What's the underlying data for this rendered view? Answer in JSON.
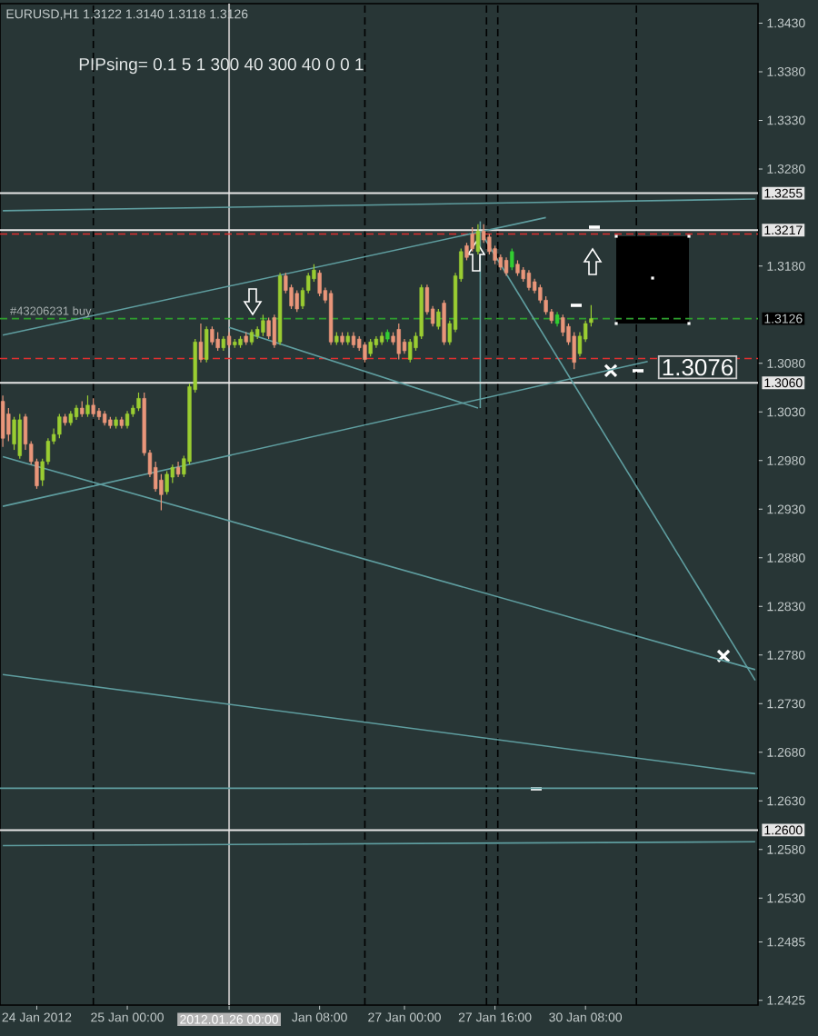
{
  "chart_data": {
    "type": "candlestick",
    "title": "EURUSD,H1 1.3122 1.3140 1.3118 1.3126",
    "annotations": [
      "PIPsing= 0.1 5 1 300 40 300 40 0 0 1",
      {
        "text": "#43206231 buy",
        "y": 1.3126
      },
      {
        "text": "1.3076",
        "y": 1.3076
      }
    ],
    "categories": [
      null,
      null,
      null,
      null,
      null,
      null,
      "24 Jan 2012",
      null,
      null,
      null,
      null,
      null,
      null,
      null,
      null,
      null,
      null,
      null,
      null,
      null,
      null,
      null,
      "25 Jan 00:00",
      null,
      null,
      null,
      null,
      null,
      null,
      null,
      null,
      null,
      null,
      null,
      null,
      null,
      null,
      null,
      null,
      null,
      "2012.01.26 00:00",
      null,
      null,
      null,
      null,
      null,
      null,
      null,
      null,
      null,
      null,
      null,
      null,
      null,
      null,
      null,
      "Jan 08:00",
      null,
      null,
      null,
      null,
      null,
      null,
      null,
      null,
      null,
      null,
      null,
      null,
      null,
      null,
      "27 Jan 00:00",
      null,
      null,
      null,
      null,
      null,
      null,
      null,
      null,
      null,
      null,
      null,
      null,
      null,
      null,
      null,
      "27 Jan 16:00",
      null,
      null,
      null,
      null,
      null,
      null,
      null,
      null,
      null,
      null,
      null,
      null,
      null,
      null,
      null,
      "30 Jan 08:00",
      null,
      null,
      null,
      null,
      null,
      null,
      null,
      null,
      null,
      null,
      null,
      null,
      null,
      null,
      null,
      null,
      null,
      null,
      null,
      null,
      null,
      null,
      null,
      null,
      null,
      null,
      null,
      null,
      null,
      null
    ],
    "ohlc": [
      [
        1.3041,
        1.3047,
        1.2994,
        1.3003
      ],
      [
        1.3028,
        1.3034,
        1.3,
        1.3007
      ],
      [
        1.2997,
        1.3025,
        1.2991,
        1.3022
      ],
      [
        1.2985,
        1.3028,
        1.2982,
        1.3022
      ],
      [
        1.3025,
        1.3028,
        1.2991,
        1.2997
      ],
      [
        1.2997,
        1.3,
        1.2976,
        1.2979
      ],
      [
        1.2979,
        1.2982,
        1.2951,
        1.2954
      ],
      [
        1.296,
        1.2982,
        1.2954,
        1.2979
      ],
      [
        1.2979,
        1.3003,
        1.2976,
        1.3
      ],
      [
        1.3,
        1.3013,
        1.2997,
        1.3007
      ],
      [
        1.3007,
        1.3028,
        1.3003,
        1.3025
      ],
      [
        1.3025,
        1.3028,
        1.3016,
        1.3019
      ],
      [
        1.3019,
        1.3031,
        1.3016,
        1.3028
      ],
      [
        1.3025,
        1.3037,
        1.3022,
        1.3034
      ],
      [
        1.3034,
        1.3041,
        1.3025,
        1.3028
      ],
      [
        1.3028,
        1.3047,
        1.3025,
        1.3037
      ],
      [
        1.3037,
        1.3044,
        1.3025,
        1.3028
      ],
      [
        1.3031,
        1.3034,
        1.3022,
        1.3025
      ],
      [
        1.3028,
        1.3031,
        1.3016,
        1.3019
      ],
      [
        1.3022,
        1.3025,
        1.3013,
        1.3016
      ],
      [
        1.3016,
        1.3025,
        1.3013,
        1.3022
      ],
      [
        1.3022,
        1.3025,
        1.3013,
        1.3016
      ],
      [
        1.3016,
        1.3031,
        1.3013,
        1.3028
      ],
      [
        1.3028,
        1.3037,
        1.3025,
        1.3034
      ],
      [
        1.3034,
        1.305,
        1.3031,
        1.3044
      ],
      [
        1.3044,
        1.305,
        1.2985,
        1.2988
      ],
      [
        1.2988,
        1.2991,
        1.2963,
        1.2966
      ],
      [
        1.2973,
        1.2979,
        1.2948,
        1.2951
      ],
      [
        1.296,
        1.2966,
        1.2929,
        1.2945
      ],
      [
        1.2948,
        1.2969,
        1.2945,
        1.2966
      ],
      [
        1.2963,
        1.2976,
        1.2957,
        1.2973
      ],
      [
        1.2973,
        1.2979,
        1.2963,
        1.2966
      ],
      [
        1.2966,
        1.2985,
        1.2963,
        1.2982
      ],
      [
        1.2979,
        1.3059,
        1.2976,
        1.3056
      ],
      [
        1.3053,
        1.3105,
        1.305,
        1.3102
      ],
      [
        1.3102,
        1.3121,
        1.3081,
        1.3084
      ],
      [
        1.3084,
        1.3118,
        1.3081,
        1.3115
      ],
      [
        1.3115,
        1.3118,
        1.3099,
        1.3102
      ],
      [
        1.3105,
        1.3112,
        1.3093,
        1.3096
      ],
      [
        1.3096,
        1.3108,
        1.3093,
        1.3105
      ],
      [
        1.3108,
        1.3112,
        1.3096,
        1.3099
      ],
      [
        1.3099,
        1.3105,
        1.3096,
        1.3102
      ],
      [
        1.3099,
        1.3108,
        1.3096,
        1.3105
      ],
      [
        1.3108,
        1.3112,
        1.3099,
        1.3102
      ],
      [
        1.3102,
        1.3115,
        1.3099,
        1.3112
      ],
      [
        1.3108,
        1.3118,
        1.3105,
        1.3115
      ],
      [
        1.3112,
        1.313,
        1.3108,
        1.3124
      ],
      [
        1.3124,
        1.3127,
        1.3105,
        1.3108
      ],
      [
        1.3127,
        1.313,
        1.3096,
        1.3099
      ],
      [
        1.3102,
        1.3173,
        1.3099,
        1.317
      ],
      [
        1.317,
        1.3173,
        1.3152,
        1.3155
      ],
      [
        1.3158,
        1.3161,
        1.3136,
        1.3139
      ],
      [
        1.3152,
        1.3155,
        1.3133,
        1.3136
      ],
      [
        1.3139,
        1.3158,
        1.3136,
        1.3155
      ],
      [
        1.3155,
        1.3173,
        1.3152,
        1.317
      ],
      [
        1.3167,
        1.3182,
        1.3164,
        1.3176
      ],
      [
        1.3173,
        1.3176,
        1.3149,
        1.3152
      ],
      [
        1.3155,
        1.3158,
        1.3142,
        1.3145
      ],
      [
        1.3152,
        1.3155,
        1.3099,
        1.3102
      ],
      [
        1.3102,
        1.3112,
        1.3099,
        1.3108
      ],
      [
        1.3108,
        1.3112,
        1.3099,
        1.3102
      ],
      [
        1.3102,
        1.3112,
        1.3099,
        1.3108
      ],
      [
        1.3108,
        1.3112,
        1.3096,
        1.3099
      ],
      [
        1.3105,
        1.3108,
        1.3093,
        1.3096
      ],
      [
        1.3099,
        1.3102,
        1.3081,
        1.3084
      ],
      [
        1.309,
        1.3105,
        1.3087,
        1.3102
      ],
      [
        1.3099,
        1.3108,
        1.3096,
        1.3105
      ],
      [
        1.3102,
        1.3112,
        1.3099,
        1.3108
      ],
      [
        1.3105,
        1.3115,
        1.3102,
        1.3112
      ],
      [
        1.3108,
        1.3112,
        1.3099,
        1.3102
      ],
      [
        1.3115,
        1.3121,
        1.3084,
        1.309
      ],
      [
        1.3102,
        1.3105,
        1.309,
        1.3093
      ],
      [
        1.3084,
        1.3105,
        1.3081,
        1.3102
      ],
      [
        1.3096,
        1.3112,
        1.3093,
        1.3108
      ],
      [
        1.3108,
        1.3161,
        1.3105,
        1.3158
      ],
      [
        1.3158,
        1.3161,
        1.313,
        1.3133
      ],
      [
        1.3136,
        1.3139,
        1.3118,
        1.3121
      ],
      [
        1.3118,
        1.3136,
        1.3115,
        1.3133
      ],
      [
        1.3142,
        1.3145,
        1.3099,
        1.3102
      ],
      [
        1.3102,
        1.3124,
        1.3099,
        1.3121
      ],
      [
        1.3115,
        1.3173,
        1.3112,
        1.317
      ],
      [
        1.3167,
        1.3198,
        1.3164,
        1.3195
      ],
      [
        1.3201,
        1.3204,
        1.3186,
        1.3189
      ],
      [
        1.3213,
        1.322,
        1.3195,
        1.3198
      ],
      [
        1.3195,
        1.3223,
        1.3192,
        1.3216
      ],
      [
        1.3216,
        1.3223,
        1.3204,
        1.3207
      ],
      [
        1.321,
        1.3213,
        1.3192,
        1.3195
      ],
      [
        1.3198,
        1.3201,
        1.3182,
        1.3186
      ],
      [
        1.3189,
        1.3192,
        1.3176,
        1.3179
      ],
      [
        1.3186,
        1.3189,
        1.317,
        1.3173
      ],
      [
        1.3179,
        1.3198,
        1.3176,
        1.3195
      ],
      [
        1.3182,
        1.3186,
        1.317,
        1.3173
      ],
      [
        1.3176,
        1.3179,
        1.3164,
        1.3167
      ],
      [
        1.3173,
        1.3176,
        1.3155,
        1.3158
      ],
      [
        1.3164,
        1.3167,
        1.3152,
        1.3155
      ],
      [
        1.3158,
        1.3161,
        1.3142,
        1.3145
      ],
      [
        1.3145,
        1.3149,
        1.313,
        1.3133
      ],
      [
        1.3133,
        1.3136,
        1.3121,
        1.3124
      ],
      [
        1.3121,
        1.3133,
        1.3118,
        1.313
      ],
      [
        1.3127,
        1.313,
        1.3108,
        1.3112
      ],
      [
        1.3118,
        1.3121,
        1.3099,
        1.3102
      ],
      [
        1.3108,
        1.3112,
        1.3074,
        1.3081
      ],
      [
        1.309,
        1.3112,
        1.3087,
        1.3108
      ],
      [
        1.3105,
        1.3124,
        1.3102,
        1.3121
      ],
      [
        1.3122,
        1.314,
        1.3118,
        1.3126
      ],
      null,
      null,
      null,
      null,
      null,
      null,
      null,
      null,
      null,
      null,
      null,
      null,
      null,
      null,
      null,
      null,
      null,
      null,
      null,
      null,
      null,
      null,
      null,
      null,
      null,
      null,
      null,
      null,
      null
    ],
    "colors": [
      "#e9967a",
      "#e9967a",
      "#9acd32",
      "#9acd32",
      "#e9967a",
      "#e9967a",
      "#e9967a",
      "#9acd32",
      "#9acd32",
      "#9acd32",
      "#9acd32",
      "#e9967a",
      "#9acd32",
      "#9acd32",
      "#e9967a",
      "#9acd32",
      "#e9967a",
      "#e9967a",
      "#e9967a",
      "#e9967a",
      "#9acd32",
      "#e9967a",
      "#9acd32",
      "#9acd32",
      "#9acd32",
      "#e9967a",
      "#e9967a",
      "#e9967a",
      "#e9967a",
      "#9acd32",
      "#9acd32",
      "#e9967a",
      "#9acd32",
      "#9acd32",
      "#9acd32",
      "#e9967a",
      "#9acd32",
      "#e9967a",
      "#e9967a",
      "#9acd32",
      "#e9967a",
      "#9acd32",
      "#9acd32",
      "#e9967a",
      "#9acd32",
      "#9acd32",
      "#9acd32",
      "#e9967a",
      "#e9967a",
      "#9acd32",
      "#e9967a",
      "#e9967a",
      "#e9967a",
      "#9acd32",
      "#9acd32",
      "#9acd32",
      "#e9967a",
      "#e9967a",
      "#e9967a",
      "#9acd32",
      "#e9967a",
      "#9acd32",
      "#e9967a",
      "#e9967a",
      "#e9967a",
      "#9acd32",
      "#9acd32",
      "#9acd32",
      "#32cd32",
      "#e9967a",
      "#e9967a",
      "#e9967a",
      "#9acd32",
      "#9acd32",
      "#9acd32",
      "#e9967a",
      "#e9967a",
      "#9acd32",
      "#e9967a",
      "#9acd32",
      "#9acd32",
      "#9acd32",
      "#e9967a",
      "#e9967a",
      "#9acd32",
      "#e9967a",
      "#e9967a",
      "#e9967a",
      "#e9967a",
      "#e9967a",
      "#32cd32",
      "#e9967a",
      "#e9967a",
      "#e9967a",
      "#e9967a",
      "#e9967a",
      "#e9967a",
      "#e9967a",
      "#32cd32",
      "#e9967a",
      "#e9967a",
      "#e9967a",
      "#9acd32",
      "#9acd32",
      "#9acd32",
      null,
      null,
      null,
      null,
      null,
      null,
      null,
      null,
      null,
      null,
      null,
      null,
      null,
      null,
      null,
      null,
      null,
      null,
      null,
      null,
      null,
      null,
      null,
      null,
      null,
      null,
      null,
      null,
      null
    ],
    "series": [
      {
        "type": "line",
        "color": "#5f9ea0",
        "values": [
          1.3237,
          null,
          null,
          null,
          null,
          null,
          null,
          null,
          null,
          null,
          null,
          null,
          null,
          null,
          null,
          null,
          null,
          null,
          null,
          null,
          null,
          null,
          null,
          null,
          null,
          null,
          null,
          null,
          null,
          null,
          null,
          null,
          null,
          null,
          null,
          null,
          null,
          null,
          null,
          null,
          null,
          null,
          null,
          null,
          null,
          null,
          null,
          null,
          null,
          null,
          null,
          null,
          null,
          null,
          null,
          null,
          null,
          null,
          null,
          null,
          null,
          null,
          null,
          null,
          null,
          null,
          null,
          null,
          null,
          null,
          null,
          null,
          null,
          null,
          null,
          null,
          null,
          null,
          null,
          null,
          null,
          null,
          null,
          null,
          null,
          null,
          null,
          null,
          null,
          null,
          null,
          null,
          null,
          null,
          null,
          null,
          null,
          null,
          null,
          null,
          null,
          null,
          null,
          null,
          null,
          null,
          null,
          null,
          null,
          null,
          null,
          null,
          null,
          null,
          null,
          null,
          null,
          null,
          null,
          null,
          null,
          null,
          null,
          null,
          null,
          null,
          null,
          null,
          null,
          null,
          null,
          null,
          null,
          1.3249
        ]
      },
      {
        "type": "line",
        "color": "#5f9ea0",
        "values": [
          1.3109,
          null,
          null,
          null,
          null,
          null,
          null,
          null,
          null,
          null,
          null,
          null,
          null,
          null,
          null,
          null,
          null,
          null,
          null,
          null,
          null,
          null,
          null,
          null,
          null,
          null,
          null,
          null,
          null,
          null,
          null,
          null,
          null,
          null,
          null,
          null,
          null,
          null,
          null,
          null,
          null,
          null,
          null,
          null,
          null,
          null,
          null,
          null,
          null,
          null,
          null,
          null,
          null,
          null,
          null,
          null,
          null,
          null,
          null,
          null,
          null,
          null,
          null,
          null,
          null,
          null,
          null,
          null,
          null,
          null,
          null,
          null,
          null,
          null,
          null,
          null,
          null,
          null,
          null,
          null,
          null,
          null,
          null,
          null,
          null,
          null,
          null,
          null,
          null,
          null,
          null,
          null,
          null,
          null,
          null,
          null,
          1.323,
          null,
          null,
          null,
          null,
          null,
          null,
          null,
          null,
          null,
          null,
          null,
          null,
          null,
          null,
          null,
          null,
          null,
          null,
          null,
          null,
          null,
          null,
          null,
          null,
          null,
          null,
          null,
          null,
          null,
          null,
          null,
          null,
          null,
          null,
          null,
          null,
          null
        ]
      },
      {
        "type": "line",
        "color": "#5f9ea0",
        "values": [
          1.2933,
          null,
          null,
          null,
          null,
          null,
          null,
          null,
          null,
          null,
          null,
          null,
          null,
          null,
          null,
          null,
          null,
          null,
          null,
          null,
          null,
          null,
          null,
          null,
          null,
          null,
          null,
          null,
          null,
          null,
          null,
          null,
          null,
          null,
          null,
          null,
          null,
          null,
          null,
          null,
          null,
          null,
          null,
          null,
          null,
          null,
          null,
          null,
          null,
          null,
          null,
          null,
          null,
          null,
          null,
          null,
          null,
          null,
          null,
          null,
          null,
          null,
          null,
          null,
          null,
          null,
          null,
          null,
          null,
          null,
          null,
          null,
          null,
          null,
          null,
          null,
          null,
          null,
          null,
          null,
          null,
          null,
          null,
          null,
          null,
          null,
          null,
          null,
          null,
          null,
          null,
          null,
          null,
          null,
          null,
          null,
          null,
          null,
          null,
          null,
          null,
          null,
          null,
          null,
          null,
          null,
          null,
          null,
          null,
          null,
          null,
          null,
          null,
          null,
          1.3082,
          null,
          null,
          null,
          null,
          null,
          null,
          null,
          null,
          null,
          null,
          null,
          null,
          null,
          null,
          null,
          null,
          null,
          null,
          null
        ]
      },
      {
        "type": "line",
        "color": "#5f9ea0",
        "values": [
          null,
          null,
          null,
          null,
          null,
          null,
          null,
          null,
          null,
          null,
          null,
          null,
          null,
          null,
          null,
          null,
          null,
          null,
          null,
          null,
          null,
          null,
          null,
          null,
          null,
          null,
          null,
          null,
          null,
          null,
          null,
          null,
          null,
          null,
          null,
          null,
          null,
          null,
          null,
          null,
          1.3117,
          null,
          null,
          null,
          null,
          null,
          null,
          null,
          null,
          null,
          null,
          null,
          null,
          null,
          null,
          null,
          null,
          null,
          null,
          null,
          null,
          null,
          null,
          null,
          null,
          null,
          null,
          null,
          null,
          null,
          null,
          null,
          null,
          null,
          null,
          null,
          null,
          null,
          null,
          null,
          null,
          null,
          null,
          null,
          1.3034,
          null,
          null,
          null,
          null,
          null,
          null,
          null,
          null,
          null,
          null,
          null,
          null,
          null,
          null,
          null,
          null,
          null,
          null,
          null,
          null,
          null,
          null,
          null,
          null,
          null,
          null,
          null,
          null,
          null,
          null,
          null,
          null,
          null,
          null,
          null,
          null,
          null,
          null,
          null,
          null,
          null,
          null,
          null,
          null,
          null,
          null,
          null,
          null,
          null
        ]
      },
      {
        "type": "line",
        "color": "#5f9ea0",
        "values": [
          null,
          null,
          null,
          null,
          null,
          null,
          null,
          null,
          null,
          null,
          null,
          null,
          null,
          null,
          null,
          null,
          null,
          null,
          null,
          null,
          null,
          null,
          null,
          null,
          null,
          null,
          null,
          null,
          null,
          null,
          null,
          null,
          null,
          null,
          null,
          null,
          null,
          null,
          null,
          null,
          null,
          null,
          null,
          null,
          null,
          null,
          null,
          null,
          null,
          null,
          null,
          null,
          null,
          null,
          null,
          null,
          null,
          null,
          null,
          null,
          null,
          null,
          null,
          null,
          null,
          null,
          null,
          null,
          null,
          null,
          null,
          null,
          null,
          null,
          null,
          null,
          null,
          null,
          null,
          null,
          null,
          null,
          null,
          null,
          null,
          1.321,
          null,
          null,
          null,
          null,
          null,
          null,
          null,
          null,
          null,
          null,
          null,
          null,
          null,
          null,
          null,
          null,
          null,
          null,
          null,
          null,
          null,
          null,
          null,
          null,
          null,
          null,
          null,
          null,
          null,
          null,
          null,
          null,
          null,
          null,
          null,
          null,
          null,
          null,
          null,
          null,
          null,
          null,
          null,
          null,
          null,
          null,
          null,
          1.2754
        ]
      },
      {
        "type": "line",
        "color": "#5f9ea0",
        "values": [
          1.2984,
          null,
          null,
          null,
          null,
          null,
          null,
          null,
          null,
          null,
          null,
          null,
          null,
          null,
          null,
          null,
          null,
          null,
          null,
          null,
          null,
          null,
          null,
          null,
          null,
          null,
          null,
          null,
          null,
          null,
          null,
          null,
          null,
          null,
          null,
          null,
          null,
          null,
          null,
          null,
          null,
          null,
          null,
          null,
          null,
          null,
          null,
          null,
          null,
          null,
          null,
          null,
          null,
          null,
          null,
          null,
          null,
          null,
          null,
          null,
          null,
          null,
          null,
          null,
          null,
          null,
          null,
          null,
          null,
          null,
          null,
          null,
          null,
          null,
          null,
          null,
          null,
          null,
          null,
          null,
          null,
          null,
          null,
          null,
          null,
          null,
          null,
          null,
          null,
          null,
          null,
          null,
          null,
          null,
          null,
          null,
          null,
          null,
          null,
          null,
          null,
          null,
          null,
          null,
          null,
          null,
          null,
          null,
          null,
          null,
          null,
          null,
          null,
          null,
          null,
          null,
          null,
          null,
          null,
          null,
          null,
          null,
          null,
          null,
          null,
          null,
          null,
          null,
          null,
          null,
          null,
          null,
          null,
          1.2765
        ]
      },
      {
        "type": "line",
        "color": "#5f9ea0",
        "values": [
          1.276,
          null,
          null,
          null,
          null,
          null,
          null,
          null,
          null,
          null,
          null,
          null,
          null,
          null,
          null,
          null,
          null,
          null,
          null,
          null,
          null,
          null,
          null,
          null,
          null,
          null,
          null,
          null,
          null,
          null,
          null,
          null,
          null,
          null,
          null,
          null,
          null,
          null,
          null,
          null,
          null,
          null,
          null,
          null,
          null,
          null,
          null,
          null,
          null,
          null,
          null,
          null,
          null,
          null,
          null,
          null,
          null,
          null,
          null,
          null,
          null,
          null,
          null,
          null,
          null,
          null,
          null,
          null,
          null,
          null,
          null,
          null,
          null,
          null,
          null,
          null,
          null,
          null,
          null,
          null,
          null,
          null,
          null,
          null,
          null,
          null,
          null,
          null,
          null,
          null,
          null,
          null,
          null,
          null,
          null,
          null,
          null,
          null,
          null,
          null,
          null,
          null,
          null,
          null,
          null,
          null,
          null,
          null,
          null,
          null,
          null,
          null,
          null,
          null,
          null,
          null,
          null,
          null,
          null,
          null,
          null,
          null,
          null,
          null,
          null,
          null,
          null,
          null,
          null,
          null,
          null,
          null,
          null,
          1.2658
        ]
      },
      {
        "type": "line",
        "color": "#5f9ea0",
        "values": [
          1.2584,
          null,
          null,
          null,
          null,
          null,
          null,
          null,
          null,
          null,
          null,
          null,
          null,
          null,
          null,
          null,
          null,
          null,
          null,
          null,
          null,
          null,
          null,
          null,
          null,
          null,
          null,
          null,
          null,
          null,
          null,
          null,
          null,
          null,
          null,
          null,
          null,
          null,
          null,
          null,
          null,
          null,
          null,
          null,
          null,
          null,
          null,
          null,
          null,
          null,
          null,
          null,
          null,
          null,
          null,
          null,
          null,
          null,
          null,
          null,
          null,
          null,
          null,
          null,
          null,
          null,
          null,
          null,
          null,
          null,
          null,
          null,
          null,
          null,
          null,
          null,
          null,
          null,
          null,
          null,
          null,
          null,
          null,
          null,
          null,
          null,
          null,
          null,
          null,
          null,
          null,
          null,
          null,
          null,
          null,
          null,
          null,
          null,
          null,
          null,
          null,
          null,
          null,
          null,
          null,
          null,
          null,
          null,
          null,
          null,
          null,
          null,
          null,
          null,
          null,
          null,
          null,
          null,
          null,
          null,
          null,
          null,
          null,
          null,
          null,
          null,
          null,
          null,
          null,
          null,
          null,
          null,
          null,
          1.2588
        ]
      }
    ],
    "ylim": [
      1.242,
      1.345
    ],
    "yticks": [
      {
        "value": 1.343,
        "label": "1.3430"
      },
      {
        "value": 1.338,
        "label": "1.3380"
      },
      {
        "value": 1.333,
        "label": "1.3330"
      },
      {
        "value": 1.328,
        "label": "1.3280"
      },
      {
        "value": 1.318,
        "label": "1.3180"
      },
      {
        "value": 1.308,
        "label": "1.3080"
      },
      {
        "value": 1.303,
        "label": "1.3030"
      },
      {
        "value": 1.298,
        "label": "1.2980"
      },
      {
        "value": 1.293,
        "label": "1.2930"
      },
      {
        "value": 1.288,
        "label": "1.2880"
      },
      {
        "value": 1.283,
        "label": "1.2830"
      },
      {
        "value": 1.278,
        "label": "1.2780"
      },
      {
        "value": 1.273,
        "label": "1.2730"
      },
      {
        "value": 1.268,
        "label": "1.2680"
      },
      {
        "value": 1.263,
        "label": "1.2630"
      },
      {
        "value": 1.258,
        "label": "1.2580"
      },
      {
        "value": 1.253,
        "label": "1.2530"
      },
      1.2485,
      1.2425
    ],
    "ref_lines": [
      {
        "axis": "y",
        "value": 1.3255,
        "label": "1.3255",
        "color": "#e6e6e6",
        "line_style": "solid"
      },
      {
        "axis": "y",
        "value": 1.3217,
        "label": "1.3217",
        "color": "#e6e6e6",
        "line_style": "solid"
      },
      {
        "axis": "y",
        "value": 1.3213,
        "color": "#e03030",
        "line_style": "dashed"
      },
      {
        "axis": "y",
        "value": 1.3126,
        "label": "1.3126",
        "color": "#2e9e2e",
        "line_style": "dashed"
      },
      {
        "axis": "y",
        "value": 1.3085,
        "color": "#e03030",
        "line_style": "dashed"
      },
      {
        "axis": "y",
        "value": 1.306,
        "label": "1.3060",
        "color": "#e6e6e6",
        "line_style": "solid"
      },
      {
        "axis": "y",
        "value": 1.2643,
        "color": "#5f9ea0",
        "line_style": "solid"
      },
      {
        "axis": "y",
        "value": 1.26,
        "label": "1.2600",
        "color": "#e6e6e6",
        "line_style": "solid"
      }
    ]
  }
}
